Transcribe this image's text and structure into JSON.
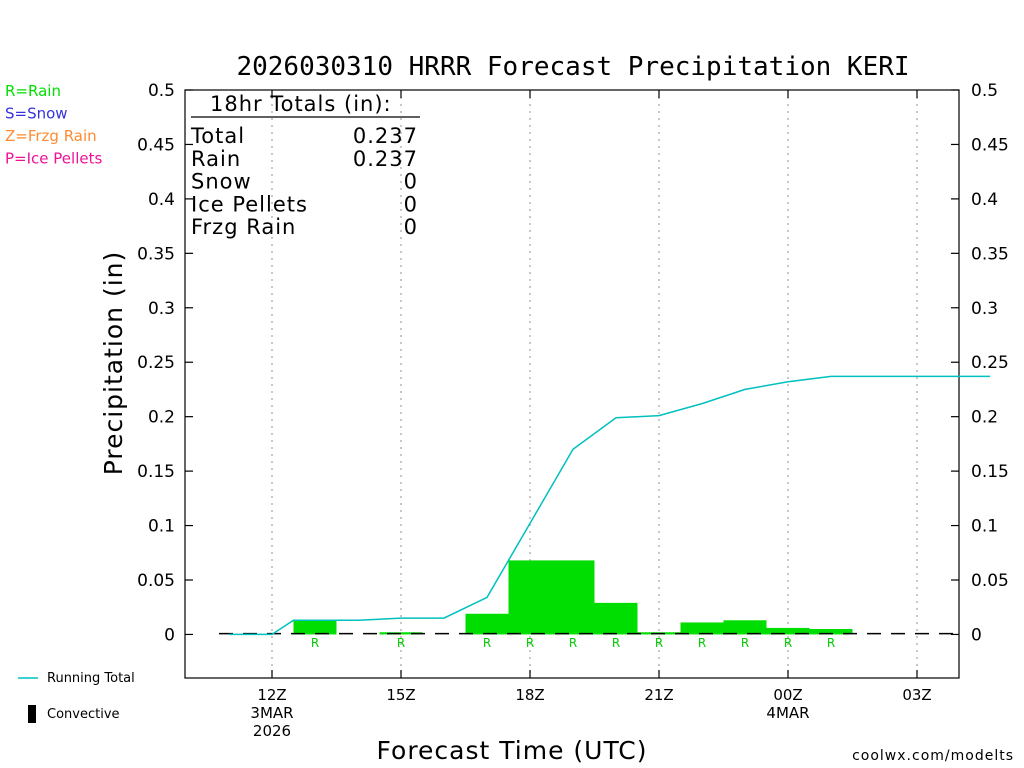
{
  "chart_data": {
    "type": "bar",
    "title": "2026030310 HRRR Forecast Precipitation KERI",
    "xlabel": "Forecast Time (UTC)",
    "ylabel": "Precipitation (in)",
    "ylim": [
      -0.04,
      0.5
    ],
    "y_ticks": [
      "0",
      "0.05",
      "0.1",
      "0.15",
      "0.2",
      "0.25",
      "0.3",
      "0.35",
      "0.4",
      "0.45",
      "0.5"
    ],
    "y_tick_values": [
      0,
      0.05,
      0.1,
      0.15,
      0.2,
      0.25,
      0.3,
      0.35,
      0.4,
      0.45,
      0.5
    ],
    "x_range_hours": [
      -1.3,
      16.7
    ],
    "x_ticks": [
      {
        "hour": 0,
        "lines": [
          "12Z",
          "3MAR",
          "2026"
        ]
      },
      {
        "hour": 3,
        "lines": [
          "15Z"
        ]
      },
      {
        "hour": 6,
        "lines": [
          "18Z"
        ]
      },
      {
        "hour": 9,
        "lines": [
          "21Z"
        ]
      },
      {
        "hour": 12,
        "lines": [
          "00Z",
          "4MAR"
        ]
      },
      {
        "hour": 15,
        "lines": [
          "03Z"
        ]
      }
    ],
    "bars": [
      {
        "hour": 1,
        "value": 0.013,
        "type": "R"
      },
      {
        "hour": 2,
        "value": 0.0,
        "type": ""
      },
      {
        "hour": 3,
        "value": 0.002,
        "type": "R"
      },
      {
        "hour": 4,
        "value": 0.0,
        "type": ""
      },
      {
        "hour": 5,
        "value": 0.019,
        "type": "R"
      },
      {
        "hour": 6,
        "value": 0.068,
        "type": "R"
      },
      {
        "hour": 7,
        "value": 0.068,
        "type": "R"
      },
      {
        "hour": 8,
        "value": 0.029,
        "type": "R"
      },
      {
        "hour": 9,
        "value": 0.002,
        "type": "R"
      },
      {
        "hour": 10,
        "value": 0.011,
        "type": "R"
      },
      {
        "hour": 11,
        "value": 0.013,
        "type": "R"
      },
      {
        "hour": 12,
        "value": 0.006,
        "type": "R"
      },
      {
        "hour": 13,
        "value": 0.005,
        "type": "R"
      },
      {
        "hour": 14,
        "value": 0.0,
        "type": ""
      },
      {
        "hour": 15,
        "value": 0.0,
        "type": ""
      },
      {
        "hour": 16,
        "value": 0.0,
        "type": ""
      }
    ],
    "running_total": {
      "name": "Running Total",
      "x": [
        -1,
        0,
        0.5,
        1,
        2,
        3,
        4,
        5,
        6,
        7,
        8,
        9,
        10,
        11,
        12,
        13,
        14,
        15,
        16,
        16.7
      ],
      "y": [
        0,
        0,
        0.013,
        0.013,
        0.013,
        0.015,
        0.015,
        0.034,
        0.102,
        0.17,
        0.199,
        0.201,
        0.212,
        0.225,
        0.232,
        0.237,
        0.237,
        0.237,
        0.237,
        0.237
      ]
    },
    "legend": [
      {
        "label": "R=Rain",
        "color": "#00e000"
      },
      {
        "label": "S=Snow",
        "color": "#3333dd"
      },
      {
        "label": "Z=Frzg Rain",
        "color": "#ff8a33"
      },
      {
        "label": "P=Ice Pellets",
        "color": "#ee1199"
      }
    ],
    "line_legend": "Running Total",
    "convective_legend": "Convective",
    "totals_box": {
      "header": "18hr Totals (in):",
      "rows": [
        {
          "label": "Total",
          "value": "0.237"
        },
        {
          "label": "Rain",
          "value": "0.237"
        },
        {
          "label": "Snow",
          "value": "0"
        },
        {
          "label": "Ice Pellets",
          "value": "0"
        },
        {
          "label": "Frzg Rain",
          "value": "0"
        }
      ]
    },
    "credit": "coolwx.com/modelts",
    "colors": {
      "bar": "#00dd00",
      "line": "#00c0c0",
      "rain_mark": "#00cc00",
      "credit": "#cc2222"
    }
  }
}
